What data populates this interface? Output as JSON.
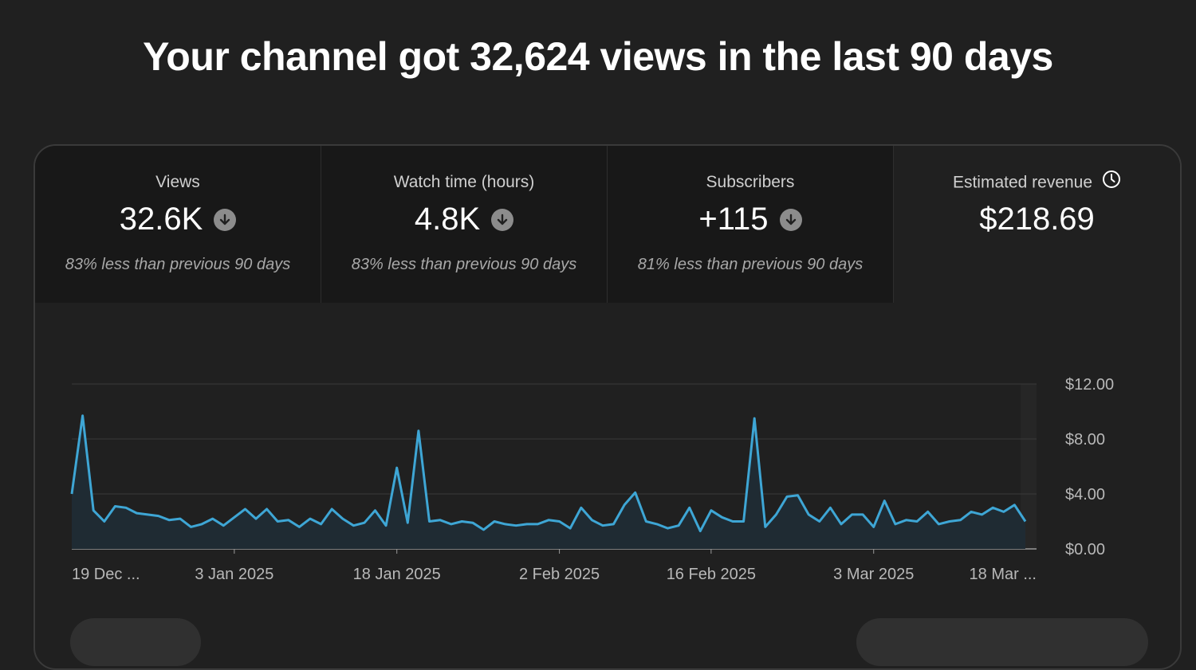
{
  "headline": "Your channel got 32,624 views in the last 90 days",
  "metrics": [
    {
      "label": "Views",
      "value": "32.6K",
      "note": "83% less than previous 90 days"
    },
    {
      "label": "Watch time (hours)",
      "value": "4.8K",
      "note": "83% less than previous 90 days"
    },
    {
      "label": "Subscribers",
      "value": "+115",
      "note": "81% less than previous 90 days"
    },
    {
      "label": "Estimated revenue",
      "value": "$218.69",
      "note": ""
    }
  ],
  "icons": {
    "trend": "arrow-down-circle-icon",
    "revenue_info": "clock-icon"
  },
  "colors": {
    "line": "#3ea6d5",
    "fill": "#1f2b33",
    "background": "#202020"
  },
  "chart_data": {
    "type": "area",
    "title": "",
    "xlabel": "",
    "ylabel": "",
    "ylim": [
      0,
      12
    ],
    "y_ticks": [
      "$12.00",
      "$8.00",
      "$4.00",
      "$0.00"
    ],
    "x_ticks": [
      "19 Dec ...",
      "3 Jan 2025",
      "18 Jan 2025",
      "2 Feb 2025",
      "16 Feb 2025",
      "3 Mar 2025",
      "18 Mar ..."
    ],
    "grid": true,
    "series": [
      {
        "values": [
          4.0,
          9.7,
          2.8,
          2.0,
          3.1,
          3.0,
          2.6,
          2.5,
          2.4,
          2.1,
          2.2,
          1.6,
          1.8,
          2.2,
          1.7,
          2.3,
          2.9,
          2.2,
          2.9,
          2.0,
          2.1,
          1.6,
          2.2,
          1.8,
          2.9,
          2.2,
          1.7,
          1.9,
          2.8,
          1.7,
          5.9,
          1.9,
          8.6,
          2.0,
          2.1,
          1.8,
          2.0,
          1.9,
          1.4,
          2.0,
          1.8,
          1.7,
          1.8,
          1.8,
          2.1,
          2.0,
          1.5,
          3.0,
          2.1,
          1.7,
          1.8,
          3.2,
          4.1,
          2.0,
          1.8,
          1.5,
          1.7,
          3.0,
          1.3,
          2.8,
          2.3,
          2.0,
          2.0,
          9.5,
          1.6,
          2.5,
          3.8,
          3.9,
          2.5,
          2.0,
          3.0,
          1.8,
          2.5,
          2.5,
          1.6,
          3.5,
          1.8,
          2.1,
          2.0,
          2.7,
          1.8,
          2.0,
          2.1,
          2.7,
          2.5,
          3.0,
          2.7,
          3.2,
          2.0
        ]
      }
    ]
  }
}
